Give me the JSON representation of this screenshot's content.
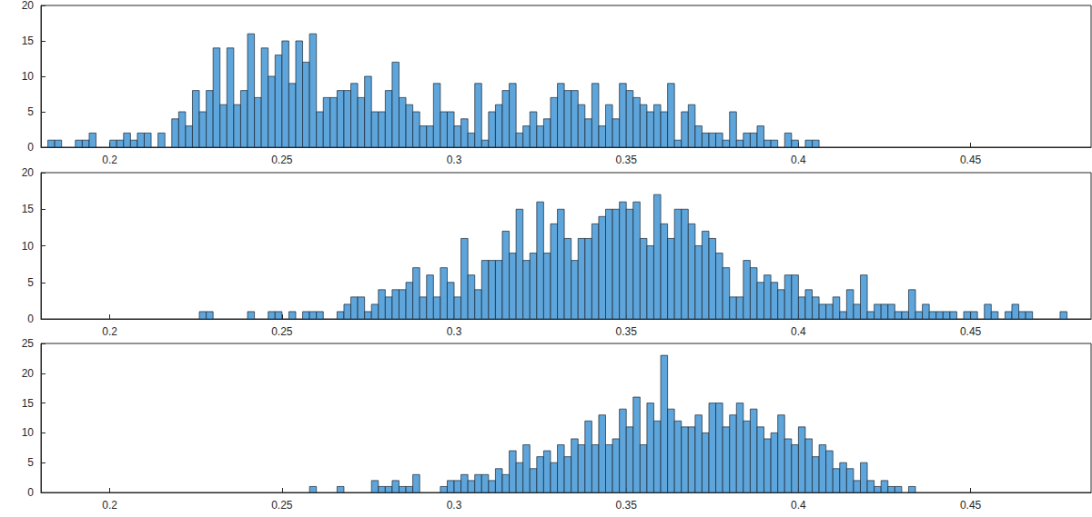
{
  "chart_data": [
    {
      "type": "histogram",
      "color": "#5da5da",
      "grid": false,
      "xlim": [
        0.18,
        0.485
      ],
      "xticks": [
        0.2,
        0.25,
        0.3,
        0.35,
        0.4,
        0.45
      ],
      "ylim": [
        0,
        20
      ],
      "yticks": [
        0,
        5,
        10,
        15,
        20
      ],
      "bins": [
        0.182,
        0.184,
        0.186,
        0.188,
        0.19,
        0.192,
        0.194,
        0.196,
        0.198,
        0.2,
        0.202,
        0.204,
        0.206,
        0.208,
        0.21,
        0.212,
        0.214,
        0.216,
        0.218,
        0.22,
        0.222,
        0.224,
        0.226,
        0.228,
        0.23,
        0.232,
        0.234,
        0.236,
        0.238,
        0.24,
        0.242,
        0.244,
        0.246,
        0.248,
        0.25,
        0.252,
        0.254,
        0.256,
        0.258,
        0.26,
        0.262,
        0.264,
        0.266,
        0.268,
        0.27,
        0.272,
        0.274,
        0.276,
        0.278,
        0.28,
        0.282,
        0.284,
        0.286,
        0.288,
        0.29,
        0.292,
        0.294,
        0.296,
        0.298,
        0.3,
        0.302,
        0.304,
        0.306,
        0.308,
        0.31,
        0.312,
        0.314,
        0.316,
        0.318,
        0.32,
        0.322,
        0.324,
        0.326,
        0.328,
        0.33,
        0.332,
        0.334,
        0.336,
        0.338,
        0.34,
        0.342,
        0.344,
        0.346,
        0.348,
        0.35,
        0.352,
        0.354,
        0.356,
        0.358,
        0.36,
        0.362,
        0.364,
        0.366,
        0.368,
        0.37,
        0.372,
        0.374,
        0.376,
        0.378,
        0.38,
        0.382,
        0.384,
        0.386,
        0.388,
        0.39,
        0.392,
        0.394,
        0.396,
        0.398,
        0.4,
        0.402,
        0.404,
        0.406
      ],
      "counts": [
        1,
        1,
        0,
        0,
        1,
        1,
        2,
        0,
        0,
        1,
        1,
        2,
        1,
        2,
        2,
        0,
        2,
        0,
        4,
        5,
        3,
        8,
        5,
        8,
        14,
        6,
        14,
        6,
        8,
        16,
        7,
        14,
        10,
        13,
        15,
        9,
        15,
        12,
        16,
        5,
        7,
        7,
        8,
        8,
        9,
        7,
        10,
        5,
        5,
        8,
        12,
        7,
        6,
        5,
        3,
        3,
        9,
        5,
        5,
        3,
        4,
        2,
        9,
        1,
        5,
        6,
        8,
        9,
        2,
        3,
        5,
        3,
        4,
        7,
        9,
        8,
        8,
        6,
        4,
        9,
        3,
        6,
        4,
        9,
        8,
        7,
        6,
        5,
        6,
        5,
        9,
        1,
        5,
        6,
        3,
        2,
        2,
        2,
        1,
        5,
        1,
        2,
        2,
        3,
        1,
        1,
        0,
        2,
        1,
        0,
        1,
        1
      ]
    },
    {
      "type": "histogram",
      "color": "#5da5da",
      "grid": false,
      "xlim": [
        0.18,
        0.485
      ],
      "xticks": [
        0.2,
        0.25,
        0.3,
        0.35,
        0.4,
        0.45
      ],
      "ylim": [
        0,
        20
      ],
      "yticks": [
        0,
        5,
        10,
        15,
        20
      ],
      "bins": [
        0.226,
        0.228,
        0.23,
        0.232,
        0.234,
        0.236,
        0.238,
        0.24,
        0.242,
        0.244,
        0.246,
        0.248,
        0.25,
        0.252,
        0.254,
        0.256,
        0.258,
        0.26,
        0.262,
        0.264,
        0.266,
        0.268,
        0.27,
        0.272,
        0.274,
        0.276,
        0.278,
        0.28,
        0.282,
        0.284,
        0.286,
        0.288,
        0.29,
        0.292,
        0.294,
        0.296,
        0.298,
        0.3,
        0.302,
        0.304,
        0.306,
        0.308,
        0.31,
        0.312,
        0.314,
        0.316,
        0.318,
        0.32,
        0.322,
        0.324,
        0.326,
        0.328,
        0.33,
        0.332,
        0.334,
        0.336,
        0.338,
        0.34,
        0.342,
        0.344,
        0.346,
        0.348,
        0.35,
        0.352,
        0.354,
        0.356,
        0.358,
        0.36,
        0.362,
        0.364,
        0.366,
        0.368,
        0.37,
        0.372,
        0.374,
        0.376,
        0.378,
        0.38,
        0.382,
        0.384,
        0.386,
        0.388,
        0.39,
        0.392,
        0.394,
        0.396,
        0.398,
        0.4,
        0.402,
        0.404,
        0.406,
        0.408,
        0.41,
        0.412,
        0.414,
        0.416,
        0.418,
        0.42,
        0.422,
        0.424,
        0.426,
        0.428,
        0.43,
        0.432,
        0.434,
        0.436,
        0.438,
        0.44,
        0.442,
        0.444,
        0.446,
        0.448,
        0.45,
        0.452,
        0.454,
        0.456,
        0.458,
        0.46,
        0.462,
        0.464,
        0.466,
        0.468,
        0.47,
        0.472,
        0.474,
        0.476,
        0.478
      ],
      "counts": [
        1,
        1,
        0,
        0,
        0,
        0,
        0,
        1,
        0,
        0,
        1,
        1,
        0,
        1,
        0,
        1,
        1,
        1,
        0,
        0,
        1,
        2,
        3,
        3,
        1,
        2,
        4,
        3,
        4,
        4,
        5,
        7,
        3,
        6,
        3,
        7,
        5,
        3,
        11,
        6,
        4,
        8,
        8,
        8,
        12,
        9,
        15,
        8,
        9,
        16,
        9,
        13,
        15,
        11,
        8,
        11,
        11,
        13,
        14,
        15,
        15,
        16,
        15,
        16,
        11,
        10,
        17,
        13,
        11,
        15,
        15,
        13,
        10,
        12,
        11,
        9,
        7,
        3,
        3,
        8,
        7,
        5,
        6,
        5,
        4,
        6,
        6,
        3,
        4,
        3,
        2,
        2,
        3,
        1,
        4,
        2,
        6,
        1,
        2,
        2,
        2,
        1,
        1,
        4,
        1,
        2,
        1,
        1,
        1,
        1,
        0,
        1,
        1,
        0,
        2,
        1,
        0,
        1,
        2,
        1,
        1,
        0,
        0,
        0,
        0,
        1
      ]
    },
    {
      "type": "histogram",
      "color": "#5da5da",
      "grid": false,
      "xlim": [
        0.18,
        0.485
      ],
      "xticks": [
        0.2,
        0.25,
        0.3,
        0.35,
        0.4,
        0.45
      ],
      "ylim": [
        0,
        25
      ],
      "yticks": [
        0,
        5,
        10,
        15,
        20,
        25
      ],
      "bins": [
        0.258,
        0.26,
        0.262,
        0.264,
        0.266,
        0.268,
        0.27,
        0.272,
        0.274,
        0.276,
        0.278,
        0.28,
        0.282,
        0.284,
        0.286,
        0.288,
        0.29,
        0.292,
        0.294,
        0.296,
        0.298,
        0.3,
        0.302,
        0.304,
        0.306,
        0.308,
        0.31,
        0.312,
        0.314,
        0.316,
        0.318,
        0.32,
        0.322,
        0.324,
        0.326,
        0.328,
        0.33,
        0.332,
        0.334,
        0.336,
        0.338,
        0.34,
        0.342,
        0.344,
        0.346,
        0.348,
        0.35,
        0.352,
        0.354,
        0.356,
        0.358,
        0.36,
        0.362,
        0.364,
        0.366,
        0.368,
        0.37,
        0.372,
        0.374,
        0.376,
        0.378,
        0.38,
        0.382,
        0.384,
        0.386,
        0.388,
        0.39,
        0.392,
        0.394,
        0.396,
        0.398,
        0.4,
        0.402,
        0.404,
        0.406,
        0.408,
        0.41,
        0.412,
        0.414,
        0.416,
        0.418,
        0.42,
        0.422,
        0.424,
        0.426,
        0.428,
        0.43,
        0.432,
        0.434
      ],
      "counts": [
        1,
        0,
        0,
        0,
        1,
        0,
        0,
        0,
        0,
        2,
        1,
        1,
        2,
        1,
        1,
        3,
        0,
        0,
        0,
        1,
        2,
        2,
        3,
        2,
        3,
        3,
        2,
        4,
        3,
        7,
        5,
        8,
        4,
        6,
        7,
        5,
        8,
        6,
        9,
        8,
        12,
        8,
        13,
        8,
        9,
        14,
        11,
        16,
        8,
        15,
        12,
        23,
        14,
        12,
        11,
        11,
        13,
        10,
        15,
        15,
        11,
        13,
        15,
        12,
        14,
        11,
        9,
        10,
        13,
        9,
        8,
        11,
        9,
        6,
        8,
        7,
        4,
        5,
        4,
        2,
        5,
        2,
        1,
        2,
        1,
        1,
        0,
        1
      ]
    }
  ]
}
